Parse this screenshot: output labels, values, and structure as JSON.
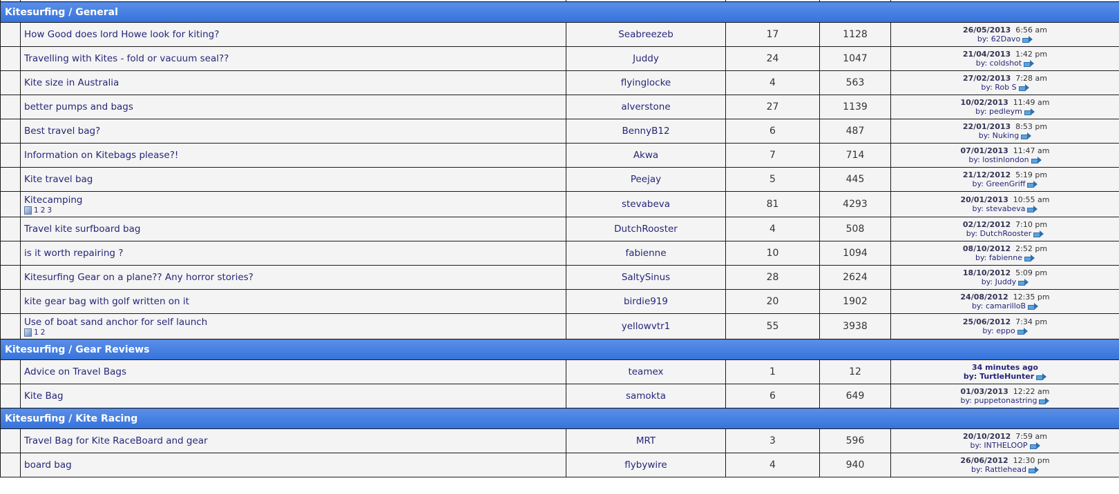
{
  "colors": {
    "category_header": "#3473dc",
    "cell_bg": "#f4f4f4",
    "link": "#26267a"
  },
  "sections": [
    {
      "title": "Kitesurfing / General",
      "topics": [
        {
          "subject": "How Good does lord Howe look for kiting?",
          "author": "Seabreezeb",
          "replies": "17",
          "views": "1128",
          "last_date": "26/05/2013",
          "last_time": "6:56 am",
          "last_by": "by: 62Davo"
        },
        {
          "subject": "Travelling with Kites - fold or vacuum seal??",
          "author": "Juddy",
          "replies": "24",
          "views": "1047",
          "last_date": "21/04/2013",
          "last_time": "1:42 pm",
          "last_by": "by: coldshot"
        },
        {
          "subject": "Kite size in Australia",
          "author": "flyinglocke",
          "replies": "4",
          "views": "563",
          "last_date": "27/02/2013",
          "last_time": "7:28 am",
          "last_by": "by: Rob S"
        },
        {
          "subject": "better pumps and bags",
          "author": "alverstone",
          "replies": "27",
          "views": "1139",
          "last_date": "10/02/2013",
          "last_time": "11:49 am",
          "last_by": "by: pedleym"
        },
        {
          "subject": "Best travel bag?",
          "author": "BennyB12",
          "replies": "6",
          "views": "487",
          "last_date": "22/01/2013",
          "last_time": "8:53 pm",
          "last_by": "by: Nuking"
        },
        {
          "subject": "Information on Kitebags please?!",
          "author": "Akwa",
          "replies": "7",
          "views": "714",
          "last_date": "07/01/2013",
          "last_time": "11:47 am",
          "last_by": "by: lostinlondon"
        },
        {
          "subject": "Kite travel bag",
          "author": "Peejay",
          "replies": "5",
          "views": "445",
          "last_date": "21/12/2012",
          "last_time": "5:19 pm",
          "last_by": "by: GreenGriff"
        },
        {
          "subject": "Kitecamping",
          "pages": [
            "1",
            "2",
            "3"
          ],
          "author": "stevabeva",
          "replies": "81",
          "views": "4293",
          "last_date": "20/01/2013",
          "last_time": "10:55 am",
          "last_by": "by: stevabeva"
        },
        {
          "subject": "Travel kite surfboard bag",
          "author": "DutchRooster",
          "replies": "4",
          "views": "508",
          "last_date": "02/12/2012",
          "last_time": "7:10 pm",
          "last_by": "by: DutchRooster"
        },
        {
          "subject": "is it worth repairing ?",
          "author": "fabienne",
          "replies": "10",
          "views": "1094",
          "last_date": "08/10/2012",
          "last_time": "2:52 pm",
          "last_by": "by: fabienne"
        },
        {
          "subject": "Kitesurfing Gear on a plane?? Any horror stories?",
          "author": "SaltySinus",
          "replies": "28",
          "views": "2624",
          "last_date": "18/10/2012",
          "last_time": "5:09 pm",
          "last_by": "by: Juddy"
        },
        {
          "subject": "kite gear bag with golf written on it",
          "author": "birdie919",
          "replies": "20",
          "views": "1902",
          "last_date": "24/08/2012",
          "last_time": "12:35 pm",
          "last_by": "by: camarilloB"
        },
        {
          "subject": "Use of boat sand anchor for self launch",
          "pages": [
            "1",
            "2"
          ],
          "author": "yellowvtr1",
          "replies": "55",
          "views": "3938",
          "last_date": "25/06/2012",
          "last_time": "7:34 pm",
          "last_by": "by: eppo"
        }
      ]
    },
    {
      "title": "Kitesurfing / Gear Reviews",
      "topics": [
        {
          "subject": "Advice on Travel Bags",
          "author": "teamex",
          "replies": "1",
          "views": "12",
          "last_date": "",
          "last_time": "34 minutes ago",
          "last_by": "by: TurtleHunter",
          "recent": true
        },
        {
          "subject": "Kite Bag",
          "author": "samokta",
          "replies": "6",
          "views": "649",
          "last_date": "01/03/2013",
          "last_time": "12:22 am",
          "last_by": "by: puppetonastring"
        }
      ]
    },
    {
      "title": "Kitesurfing / Kite Racing",
      "topics": [
        {
          "subject": "Travel Bag for Kite RaceBoard and gear",
          "author": "MRT",
          "replies": "3",
          "views": "596",
          "last_date": "20/10/2012",
          "last_time": "7:59 am",
          "last_by": "by: INTHELOOP"
        },
        {
          "subject": "board bag",
          "author": "flybywire",
          "replies": "4",
          "views": "940",
          "last_date": "26/06/2012",
          "last_time": "12:30 pm",
          "last_by": "by: Rattlehead"
        }
      ]
    }
  ]
}
